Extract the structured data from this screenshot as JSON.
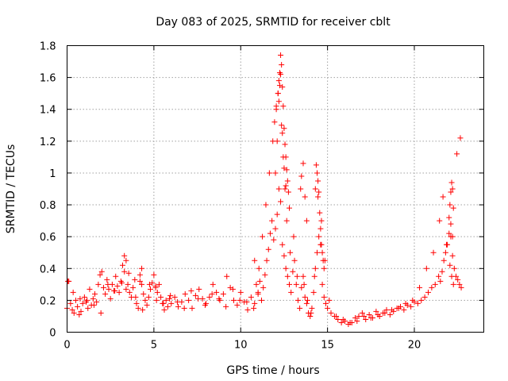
{
  "chart_data": {
    "type": "scatter",
    "title": "Day 083 of 2025, SRMTID for receiver cblt",
    "xlabel": "GPS time / hours",
    "ylabel": "SRMTID / TECUs",
    "xlim": [
      0,
      24
    ],
    "ylim": [
      0,
      1.8
    ],
    "xticks": [
      0,
      5,
      10,
      15,
      20
    ],
    "xtick_labels": [
      "0",
      "5",
      "10",
      "15",
      "20"
    ],
    "yticks": [
      0,
      0.2,
      0.4,
      0.6,
      0.8,
      1.0,
      1.2,
      1.4,
      1.6,
      1.8
    ],
    "ytick_labels": [
      "0",
      "0.2",
      "0.4",
      "0.6",
      "0.8",
      "1",
      "1.2",
      "1.4",
      "1.6",
      "1.8"
    ],
    "grid": true,
    "marker": "plus",
    "marker_color": "#ff0000",
    "series": [
      {
        "name": "SRMTID",
        "x": [
          0.0,
          0.1,
          0.2,
          0.3,
          0.4,
          0.5,
          0.6,
          0.7,
          0.8,
          0.9,
          1.0,
          1.1,
          1.2,
          1.3,
          1.4,
          1.5,
          1.6,
          1.7,
          1.8,
          1.9,
          2.0,
          2.1,
          2.2,
          2.3,
          2.4,
          2.5,
          2.6,
          2.7,
          2.8,
          2.9,
          3.0,
          3.1,
          3.2,
          3.3,
          3.4,
          3.5,
          3.6,
          3.7,
          3.8,
          3.9,
          4.0,
          4.1,
          4.2,
          4.3,
          4.4,
          4.5,
          4.6,
          4.7,
          4.8,
          4.9,
          5.0,
          5.1,
          5.2,
          5.3,
          5.4,
          5.5,
          5.6,
          5.7,
          5.8,
          5.9,
          6.0,
          6.2,
          6.4,
          6.6,
          6.8,
          7.0,
          7.2,
          7.4,
          7.6,
          7.8,
          8.0,
          8.2,
          8.4,
          8.6,
          8.8,
          9.0,
          9.2,
          9.4,
          9.6,
          9.8,
          10.0,
          10.2,
          10.4,
          10.6,
          10.8,
          11.0,
          11.1,
          11.2,
          11.3,
          11.4,
          11.5,
          11.6,
          11.7,
          11.8,
          11.9,
          12.0,
          12.1,
          12.2,
          12.3,
          12.4,
          12.5,
          12.6,
          12.7,
          12.8,
          12.9,
          13.0,
          13.1,
          13.2,
          13.3,
          13.4,
          13.5,
          13.6,
          13.7,
          13.8,
          13.9,
          14.0,
          14.1,
          14.2,
          14.3,
          14.4,
          14.5,
          14.6,
          14.7,
          14.8,
          14.9,
          15.0,
          15.2,
          15.4,
          15.6,
          15.8,
          16.0,
          16.2,
          16.4,
          16.6,
          16.8,
          17.0,
          17.2,
          17.4,
          17.6,
          17.8,
          18.0,
          18.2,
          18.4,
          18.6,
          18.8,
          19.0,
          19.2,
          19.4,
          19.6,
          19.8,
          20.0,
          20.2,
          20.4,
          20.6,
          20.8,
          21.0,
          21.2,
          21.4,
          21.5,
          21.6,
          21.7,
          21.8,
          21.9,
          22.0,
          22.1,
          22.2,
          22.3,
          22.4,
          22.5,
          22.6,
          22.7,
          0.05,
          0.35,
          0.75,
          1.15,
          1.55,
          1.95,
          2.35,
          2.75,
          3.15,
          3.55,
          3.95,
          4.35,
          4.75,
          5.15,
          5.55,
          5.95,
          6.35,
          6.75,
          7.15,
          7.55,
          7.95,
          8.35,
          8.75,
          9.15,
          9.55,
          9.95,
          10.35,
          10.75,
          11.05,
          11.25,
          11.45,
          11.65,
          11.85,
          12.05,
          12.15,
          12.25,
          12.35,
          12.45,
          12.55,
          12.65,
          12.85,
          13.05,
          13.25,
          13.45,
          13.65,
          13.85,
          14.05,
          14.25,
          14.45,
          14.65,
          14.85,
          15.1,
          15.5,
          15.9,
          16.3,
          16.7,
          17.1,
          17.5,
          17.9,
          18.3,
          18.7,
          19.1,
          19.5,
          19.9,
          20.3,
          20.7,
          21.1,
          21.45,
          21.65,
          21.85,
          22.05,
          22.15,
          22.25,
          22.45,
          22.65,
          11.95,
          12.05,
          12.15,
          12.2,
          12.25,
          12.3,
          12.35,
          12.4,
          12.45,
          12.5,
          12.55,
          12.6,
          12.65,
          12.7,
          12.75,
          12.8,
          12.0,
          12.1,
          12.2,
          12.3,
          12.4,
          12.5,
          12.6,
          13.5,
          13.6,
          13.7,
          13.8,
          14.3,
          14.35,
          14.4,
          14.45,
          14.5,
          14.55,
          14.6,
          14.65,
          14.7,
          14.75,
          14.8,
          22.0,
          22.05,
          22.1,
          22.15,
          22.2,
          22.25,
          22.1,
          22.2,
          3.3,
          3.4,
          4.2,
          4.3,
          5.1,
          10.8,
          10.9,
          11.0
        ],
        "y": [
          0.15,
          0.32,
          0.18,
          0.14,
          0.12,
          0.2,
          0.16,
          0.11,
          0.13,
          0.18,
          0.22,
          0.19,
          0.15,
          0.27,
          0.17,
          0.21,
          0.24,
          0.19,
          0.3,
          0.36,
          0.38,
          0.28,
          0.24,
          0.33,
          0.27,
          0.21,
          0.3,
          0.26,
          0.35,
          0.29,
          0.25,
          0.32,
          0.42,
          0.38,
          0.27,
          0.3,
          0.25,
          0.22,
          0.28,
          0.33,
          0.18,
          0.15,
          0.32,
          0.4,
          0.24,
          0.2,
          0.17,
          0.22,
          0.27,
          0.31,
          0.36,
          0.29,
          0.25,
          0.3,
          0.22,
          0.18,
          0.14,
          0.2,
          0.16,
          0.21,
          0.18,
          0.22,
          0.16,
          0.19,
          0.24,
          0.2,
          0.15,
          0.23,
          0.27,
          0.21,
          0.18,
          0.22,
          0.3,
          0.25,
          0.2,
          0.24,
          0.35,
          0.28,
          0.2,
          0.17,
          0.25,
          0.19,
          0.14,
          0.22,
          0.18,
          0.24,
          0.32,
          0.2,
          0.28,
          0.36,
          0.45,
          0.52,
          0.62,
          0.7,
          0.58,
          0.65,
          0.74,
          0.9,
          0.82,
          0.55,
          0.48,
          0.4,
          0.35,
          0.3,
          0.25,
          0.38,
          0.45,
          0.3,
          0.2,
          0.15,
          0.28,
          0.35,
          0.22,
          0.18,
          0.12,
          0.1,
          0.15,
          0.25,
          0.4,
          0.5,
          0.6,
          0.55,
          0.3,
          0.22,
          0.18,
          0.15,
          0.12,
          0.1,
          0.08,
          0.06,
          0.07,
          0.05,
          0.06,
          0.09,
          0.1,
          0.12,
          0.08,
          0.11,
          0.09,
          0.13,
          0.1,
          0.12,
          0.14,
          0.11,
          0.13,
          0.15,
          0.16,
          0.14,
          0.17,
          0.16,
          0.19,
          0.18,
          0.2,
          0.22,
          0.25,
          0.28,
          0.3,
          0.35,
          0.32,
          0.38,
          0.45,
          0.5,
          0.55,
          0.62,
          0.6,
          0.48,
          0.4,
          0.35,
          0.33,
          0.3,
          0.28,
          0.32,
          0.25,
          0.21,
          0.2,
          0.17,
          0.12,
          0.3,
          0.26,
          0.31,
          0.37,
          0.22,
          0.14,
          0.3,
          0.2,
          0.18,
          0.23,
          0.19,
          0.15,
          0.26,
          0.21,
          0.17,
          0.24,
          0.21,
          0.16,
          0.27,
          0.2,
          0.19,
          0.15,
          0.4,
          0.6,
          0.8,
          1.0,
          1.2,
          1.4,
          1.5,
          1.55,
          1.3,
          1.1,
          0.9,
          0.7,
          0.5,
          0.6,
          0.35,
          0.9,
          0.3,
          0.2,
          0.12,
          0.35,
          0.85,
          0.7,
          0.45,
          0.2,
          0.1,
          0.08,
          0.06,
          0.07,
          0.1,
          0.09,
          0.11,
          0.12,
          0.14,
          0.15,
          0.18,
          0.2,
          0.28,
          0.4,
          0.5,
          0.7,
          0.85,
          0.55,
          0.42,
          0.35,
          0.3,
          1.12,
          1.22,
          1.32,
          1.42,
          1.5,
          1.58,
          1.63,
          1.74,
          1.68,
          1.54,
          1.42,
          1.28,
          1.18,
          1.1,
          1.02,
          0.95,
          0.88,
          0.78,
          1.0,
          1.2,
          1.45,
          1.62,
          1.25,
          1.03,
          0.92,
          0.98,
          1.06,
          0.85,
          0.7,
          0.9,
          1.05,
          1.0,
          0.95,
          0.88,
          0.75,
          0.65,
          0.55,
          0.5,
          0.45,
          0.4,
          0.72,
          0.8,
          0.88,
          0.94,
          0.9,
          0.78,
          0.68,
          0.6,
          0.48,
          0.45,
          0.36,
          0.3,
          0.28,
          0.45,
          0.3,
          0.25
        ],
        "marker": "plus",
        "color": "#ff0000"
      }
    ]
  }
}
